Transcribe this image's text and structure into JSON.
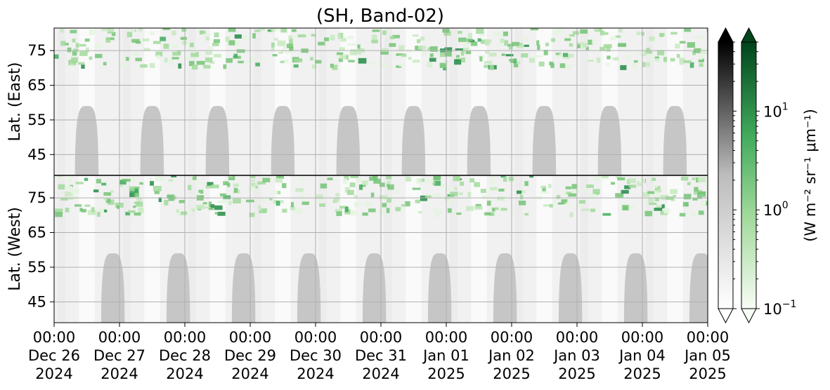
{
  "chart_data": {
    "type": "heatmap",
    "title": "(SH, Band-02)",
    "colorbar_label": "(W m⁻² sr⁻¹ μm⁻¹)",
    "colorbar_scale": "log",
    "colorbar_range": [
      0.1,
      50
    ],
    "colorbar_ticks": [
      {
        "value": 0.1,
        "base": "10",
        "exp": "−1"
      },
      {
        "value": 1,
        "base": "10",
        "exp": "0"
      },
      {
        "value": 10,
        "base": "10",
        "exp": "1"
      }
    ],
    "colormaps": [
      {
        "name": "gray",
        "colors": [
          "#ffffff",
          "#000000"
        ],
        "extend": "both"
      },
      {
        "name": "green",
        "colors": [
          "#f7fcf5",
          "#00441b"
        ],
        "extend": "both"
      }
    ],
    "panels": [
      {
        "ylabel": "Lat. (East)",
        "y_ticks": [
          "45",
          "55",
          "65",
          "75"
        ],
        "y_values": [
          45,
          55,
          65,
          75
        ],
        "ylim": [
          39,
          81.5
        ],
        "orientation": "ascending"
      },
      {
        "ylabel": "Lat. (West)",
        "y_ticks": [
          "75",
          "65",
          "55",
          "45"
        ],
        "y_values": [
          75,
          65,
          55,
          45
        ],
        "ylim": [
          39,
          81.5
        ],
        "orientation": "descending"
      }
    ],
    "x_ticks": [
      [
        "00:00",
        "Dec 26",
        "2024"
      ],
      [
        "00:00",
        "Dec 27",
        "2024"
      ],
      [
        "00:00",
        "Dec 28",
        "2024"
      ],
      [
        "00:00",
        "Dec 29",
        "2024"
      ],
      [
        "00:00",
        "Dec 30",
        "2024"
      ],
      [
        "00:00",
        "Dec 31",
        "2024"
      ],
      [
        "00:00",
        "Jan 01",
        "2025"
      ],
      [
        "00:00",
        "Jan 02",
        "2025"
      ],
      [
        "00:00",
        "Jan 03",
        "2025"
      ],
      [
        "00:00",
        "Jan 04",
        "2025"
      ],
      [
        "00:00",
        "Jan 05",
        "2025"
      ]
    ],
    "xlim": [
      "2024-12-26 00:00",
      "2025-01-05 00:00"
    ],
    "grid": true
  }
}
